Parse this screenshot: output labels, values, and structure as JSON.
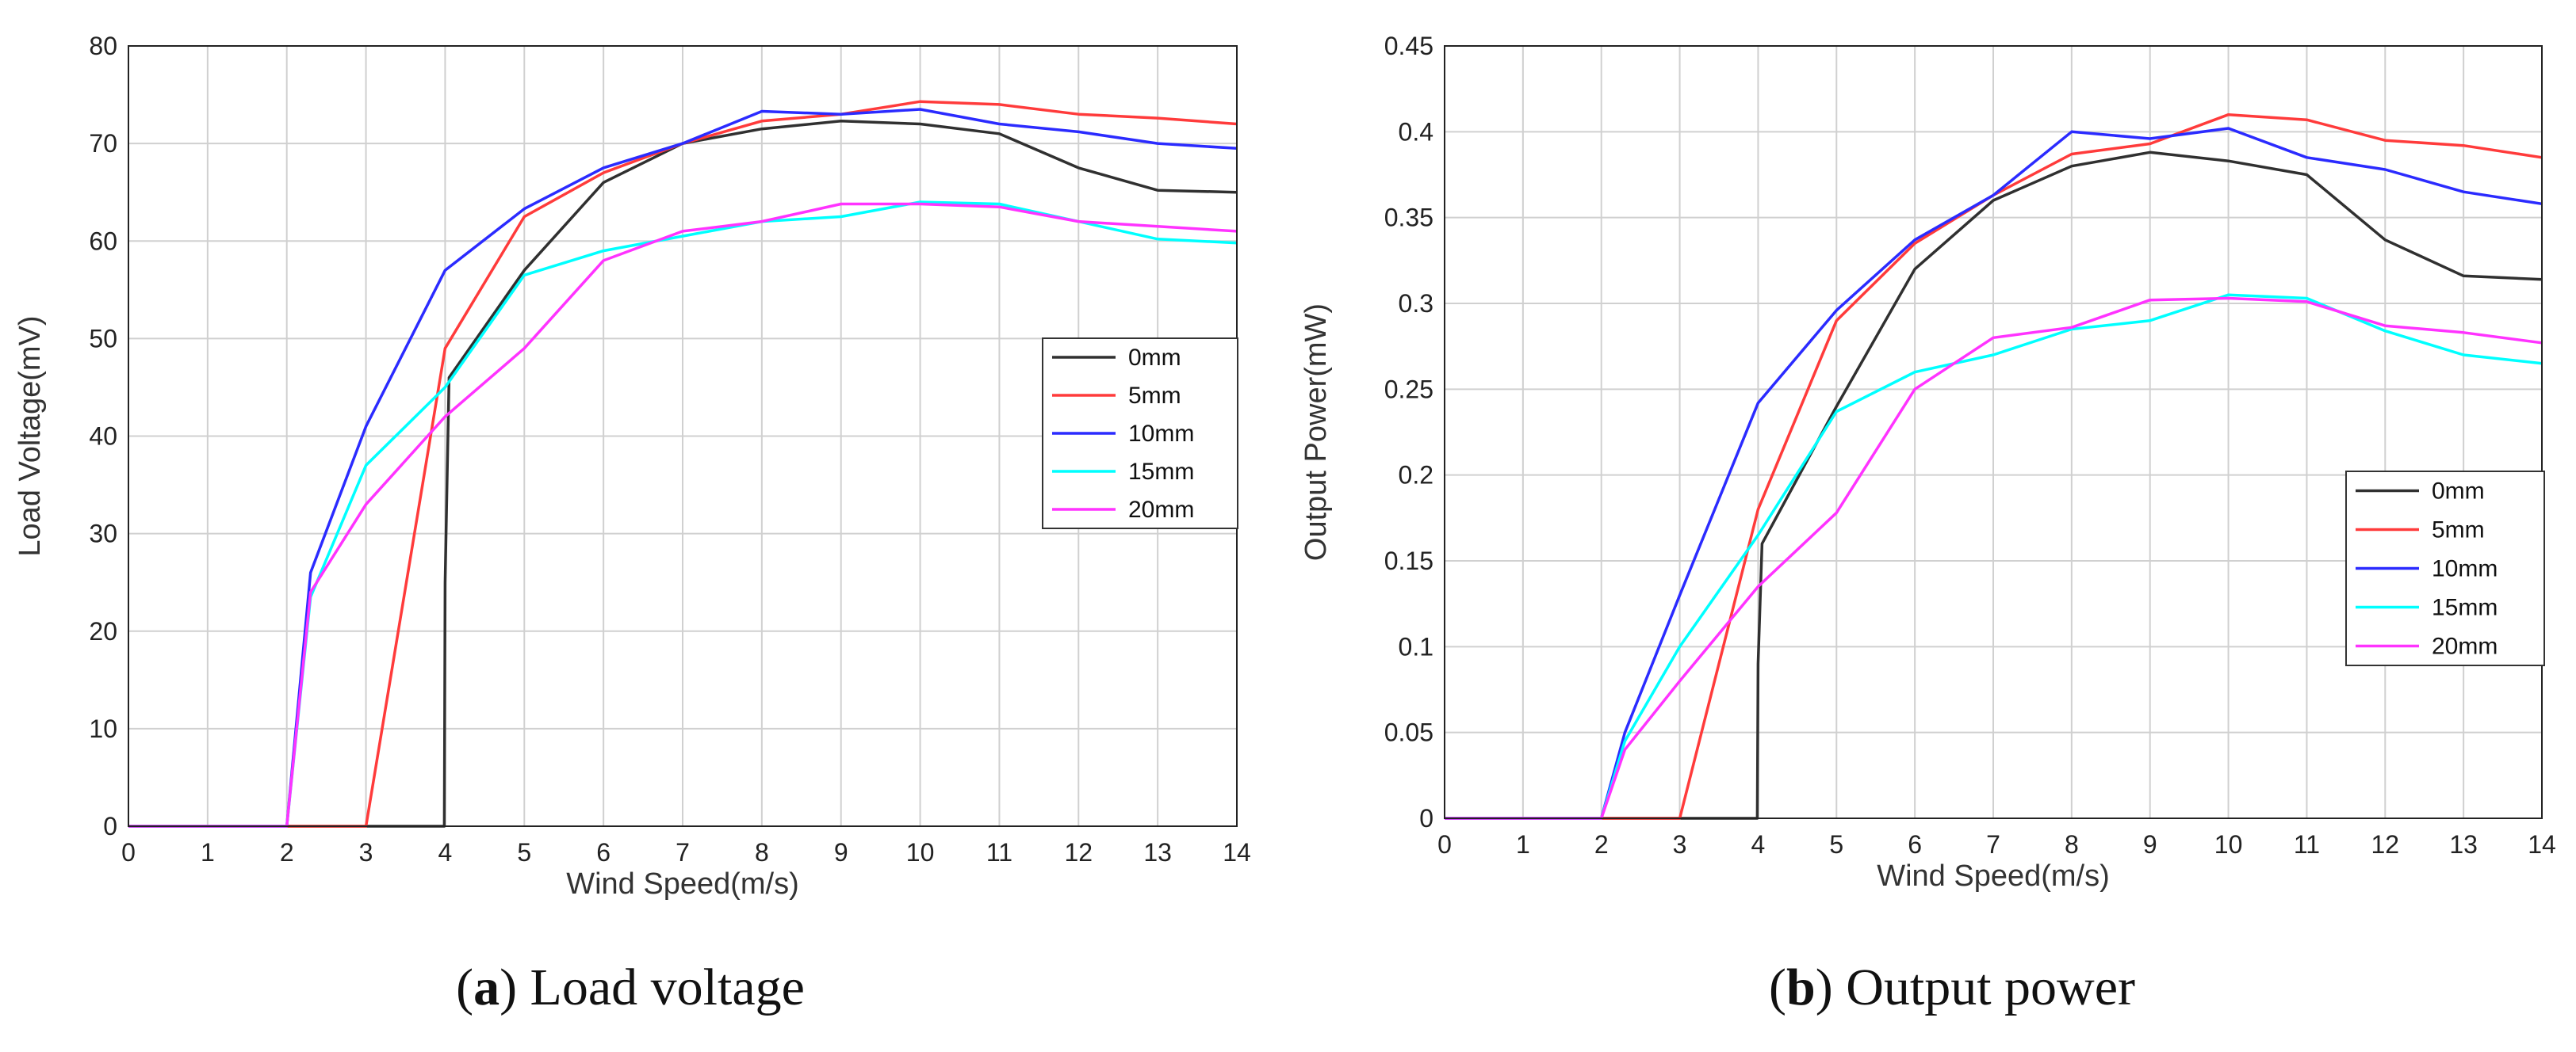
{
  "figure": {
    "captions": [
      {
        "open": "(",
        "letter": "a",
        "close": ")",
        "text": " Load voltage"
      },
      {
        "open": "(",
        "letter": "b",
        "close": ")",
        "text": " Output power"
      }
    ]
  },
  "chart_data": [
    {
      "type": "line",
      "title": "",
      "xlabel": "Wind Speed(m/s)",
      "ylabel": "Load Voltage(mV)",
      "xlim": [
        0,
        14
      ],
      "ylim": [
        0,
        80
      ],
      "xticks": [
        0,
        1,
        2,
        3,
        4,
        5,
        6,
        7,
        8,
        9,
        10,
        11,
        12,
        13,
        14
      ],
      "xtick_labels": [
        "0",
        "1",
        "2",
        "3",
        "4",
        "5",
        "6",
        "7",
        "8",
        "9",
        "10",
        "11",
        "12",
        "13",
        "14"
      ],
      "yticks": [
        0,
        10,
        20,
        30,
        40,
        50,
        60,
        70,
        80
      ],
      "ytick_labels": [
        "0",
        "10",
        "20",
        "30",
        "40",
        "50",
        "60",
        "70",
        "80"
      ],
      "grid": true,
      "legend_position": "right-middle",
      "series": [
        {
          "name": "0mm",
          "color": "#303030",
          "x": [
            0,
            1,
            2,
            3,
            3.99,
            4.0,
            4.05,
            5,
            6,
            7,
            8,
            9,
            10,
            11,
            12,
            13,
            14
          ],
          "y": [
            0,
            0,
            0,
            0,
            0,
            25,
            46,
            57,
            66,
            70,
            71.5,
            72.3,
            72,
            71,
            67.5,
            65.2,
            65
          ]
        },
        {
          "name": "5mm",
          "color": "#ff3b3b",
          "x": [
            0,
            1,
            2,
            3,
            4,
            5,
            6,
            7,
            8,
            9,
            10,
            11,
            12,
            13,
            14
          ],
          "y": [
            0,
            0,
            0,
            0,
            49,
            62.5,
            67,
            70,
            72.3,
            73,
            74.3,
            74,
            73,
            72.6,
            72
          ]
        },
        {
          "name": "10mm",
          "color": "#2b2bff",
          "x": [
            0,
            1,
            2,
            2.3,
            3,
            4,
            5,
            6,
            7,
            8,
            9,
            10,
            11,
            12,
            13,
            14
          ],
          "y": [
            0,
            0,
            0,
            26,
            41,
            57,
            63.3,
            67.5,
            70,
            73.3,
            73,
            73.5,
            72,
            71.2,
            70,
            69.5
          ]
        },
        {
          "name": "15mm",
          "color": "#00ffff",
          "x": [
            0,
            1,
            2,
            2.3,
            3,
            4,
            5,
            6,
            7,
            8,
            9,
            10,
            11,
            12,
            13,
            14
          ],
          "y": [
            0,
            0,
            0,
            23.5,
            37,
            45,
            56.5,
            59,
            60.5,
            62,
            62.5,
            64,
            63.8,
            62,
            60.2,
            59.8
          ]
        },
        {
          "name": "20mm",
          "color": "#ff33ff",
          "x": [
            0,
            1,
            2,
            2.3,
            3,
            4,
            5,
            6,
            7,
            8,
            9,
            10,
            11,
            12,
            13,
            14
          ],
          "y": [
            0,
            0,
            0,
            24,
            33,
            42,
            49,
            58,
            61,
            62,
            63.8,
            63.8,
            63.5,
            62,
            61.5,
            61
          ]
        }
      ]
    },
    {
      "type": "line",
      "title": "",
      "xlabel": "Wind Speed(m/s)",
      "ylabel": "Output Power(mW)",
      "xlim": [
        0,
        14
      ],
      "ylim": [
        0,
        0.45
      ],
      "xticks": [
        0,
        1,
        2,
        3,
        4,
        5,
        6,
        7,
        8,
        9,
        10,
        11,
        12,
        13,
        14
      ],
      "xtick_labels": [
        "0",
        "1",
        "2",
        "3",
        "4",
        "5",
        "6",
        "7",
        "8",
        "9",
        "10",
        "11",
        "12",
        "13",
        "14"
      ],
      "yticks": [
        0,
        0.05,
        0.1,
        0.15,
        0.2,
        0.25,
        0.3,
        0.35,
        0.4,
        0.45
      ],
      "ytick_labels": [
        "0",
        "0.05",
        "0.1",
        "0.15",
        "0.2",
        "0.25",
        "0.3",
        "0.35",
        "0.4",
        "0.45"
      ],
      "grid": true,
      "legend_position": "bottom-right",
      "series": [
        {
          "name": "0mm",
          "color": "#303030",
          "x": [
            0,
            1,
            2,
            3,
            3.99,
            4.0,
            4.05,
            5,
            6,
            7,
            8,
            9,
            10,
            11,
            12,
            13,
            14
          ],
          "y": [
            0,
            0,
            0,
            0,
            0,
            0.09,
            0.16,
            0.24,
            0.32,
            0.36,
            0.38,
            0.388,
            0.383,
            0.375,
            0.337,
            0.316,
            0.314
          ]
        },
        {
          "name": "5mm",
          "color": "#ff3b3b",
          "x": [
            0,
            1,
            2,
            3,
            4,
            5,
            6,
            7,
            8,
            9,
            10,
            11,
            12,
            13,
            14
          ],
          "y": [
            0,
            0,
            0,
            0,
            0.18,
            0.29,
            0.335,
            0.363,
            0.387,
            0.393,
            0.41,
            0.407,
            0.395,
            0.392,
            0.385
          ]
        },
        {
          "name": "10mm",
          "color": "#2b2bff",
          "x": [
            0,
            1,
            2,
            2.3,
            3,
            4,
            5,
            6,
            7,
            8,
            9,
            10,
            11,
            12,
            13,
            14
          ],
          "y": [
            0,
            0,
            0,
            0.05,
            0.13,
            0.242,
            0.296,
            0.337,
            0.363,
            0.4,
            0.396,
            0.402,
            0.385,
            0.378,
            0.365,
            0.358
          ]
        },
        {
          "name": "15mm",
          "color": "#00ffff",
          "x": [
            0,
            1,
            2,
            2.3,
            3,
            4,
            5,
            6,
            7,
            8,
            9,
            10,
            11,
            12,
            13,
            14
          ],
          "y": [
            0,
            0,
            0,
            0.045,
            0.1,
            0.165,
            0.237,
            0.26,
            0.27,
            0.285,
            0.29,
            0.305,
            0.303,
            0.284,
            0.27,
            0.265
          ]
        },
        {
          "name": "20mm",
          "color": "#ff33ff",
          "x": [
            0,
            1,
            2,
            2.3,
            3,
            4,
            5,
            6,
            7,
            8,
            9,
            10,
            11,
            12,
            13,
            14
          ],
          "y": [
            0,
            0,
            0,
            0.04,
            0.08,
            0.135,
            0.178,
            0.25,
            0.28,
            0.286,
            0.302,
            0.303,
            0.301,
            0.287,
            0.283,
            0.277
          ]
        }
      ]
    }
  ]
}
